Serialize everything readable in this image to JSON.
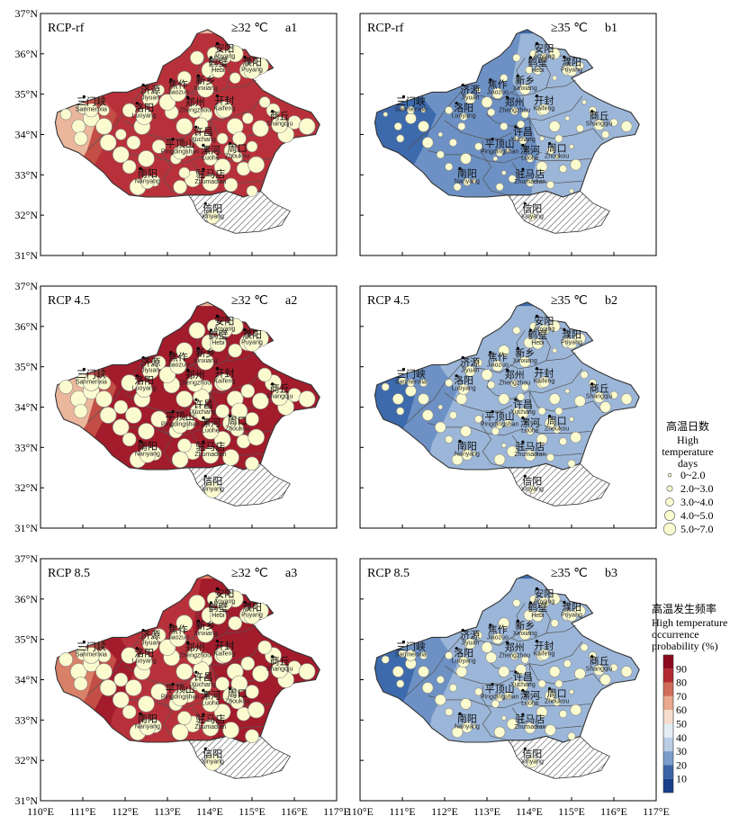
{
  "panels": [
    {
      "id": "a1",
      "scenario": "RCP-rf",
      "threshold": "≥32 ℃",
      "label": "a1",
      "col": 0,
      "row": 0,
      "base": "red",
      "fill": [
        0.2,
        0.52,
        0.85,
        0.8,
        0.82,
        0.88
      ],
      "dots": [
        4,
        4,
        5,
        5,
        5,
        5,
        4,
        5,
        4,
        5,
        5,
        5,
        4,
        4,
        3,
        4,
        5,
        4
      ]
    },
    {
      "id": "b1",
      "scenario": "RCP-rf",
      "threshold": "≥35 ℃",
      "label": "b1",
      "col": 1,
      "row": 0,
      "base": "blue",
      "fill": [
        0.1,
        0.25,
        0.4,
        0.42,
        0.45,
        0.52
      ],
      "dots": [
        2,
        2,
        3,
        3,
        3,
        3,
        2,
        2,
        2,
        3,
        3,
        2,
        2,
        2,
        1,
        2,
        2,
        2
      ]
    },
    {
      "id": "a2",
      "scenario": "RCP 4.5",
      "threshold": "≥32 ℃",
      "label": "a2",
      "col": 0,
      "row": 1,
      "base": "red",
      "fill": [
        0.25,
        0.58,
        0.92,
        0.93,
        0.95,
        0.97
      ],
      "dots": [
        5,
        5,
        5,
        5,
        5,
        5,
        5,
        5,
        5,
        5,
        5,
        5,
        5,
        5,
        4,
        5,
        5,
        5
      ]
    },
    {
      "id": "b2",
      "scenario": "RCP 4.5",
      "threshold": "≥35 ℃",
      "label": "b2",
      "col": 1,
      "row": 1,
      "base": "blue",
      "fill": [
        0.18,
        0.35,
        0.45,
        0.5,
        0.52,
        0.58
      ],
      "dots": [
        3,
        3,
        3,
        3,
        3,
        3,
        2,
        3,
        2,
        3,
        3,
        3,
        2,
        2,
        2,
        3,
        3,
        2
      ]
    },
    {
      "id": "a3",
      "scenario": "RCP 8.5",
      "threshold": "≥32 ℃",
      "label": "a3",
      "col": 0,
      "row": 2,
      "base": "red",
      "fill": [
        0.3,
        0.62,
        0.9,
        0.86,
        0.88,
        0.92
      ],
      "dots": [
        5,
        5,
        5,
        5,
        5,
        5,
        5,
        5,
        5,
        5,
        5,
        5,
        5,
        5,
        4,
        5,
        5,
        5
      ]
    },
    {
      "id": "b3",
      "scenario": "RCP 8.5",
      "threshold": "≥35 ℃",
      "label": "b3",
      "col": 1,
      "row": 2,
      "base": "blue",
      "fill": [
        0.15,
        0.32,
        0.45,
        0.5,
        0.52,
        0.56
      ],
      "dots": [
        3,
        3,
        3,
        3,
        3,
        3,
        3,
        3,
        2,
        3,
        3,
        3,
        2,
        2,
        2,
        3,
        3,
        3
      ]
    }
  ],
  "x_ticks": [
    "110°E",
    "111°E",
    "112°E",
    "113°E",
    "114°E",
    "115°E",
    "116°E",
    "117°E"
  ],
  "y_ticks": [
    "37°N",
    "36°N",
    "35°N",
    "34°N",
    "33°N",
    "32°N",
    "31°N"
  ],
  "cities": [
    {
      "cn": "安阳",
      "en": "Anyang",
      "lon": 114.35,
      "lat": 36.1
    },
    {
      "cn": "鹤壁",
      "en": "Hebi",
      "lon": 114.2,
      "lat": 35.75
    },
    {
      "cn": "濮阳",
      "en": "Puyang",
      "lon": 115.0,
      "lat": 35.76
    },
    {
      "cn": "新乡",
      "en": "Xinxiang",
      "lon": 113.9,
      "lat": 35.3
    },
    {
      "cn": "焦作",
      "en": "Jiaozuo",
      "lon": 113.25,
      "lat": 35.2
    },
    {
      "cn": "济源",
      "en": "Jiyuan",
      "lon": 112.6,
      "lat": 35.07
    },
    {
      "cn": "三门峡",
      "en": "Sanmenxia",
      "lon": 111.2,
      "lat": 34.78
    },
    {
      "cn": "洛阳",
      "en": "Luoyang",
      "lon": 112.45,
      "lat": 34.62
    },
    {
      "cn": "郑州",
      "en": "Zhengzhou",
      "lon": 113.65,
      "lat": 34.76
    },
    {
      "cn": "开封",
      "en": "Kaifeng",
      "lon": 114.35,
      "lat": 34.8
    },
    {
      "cn": "商丘",
      "en": "Shangqiu",
      "lon": 115.65,
      "lat": 34.42
    },
    {
      "cn": "许昌",
      "en": "Xuchang",
      "lon": 113.85,
      "lat": 34.03
    },
    {
      "cn": "平顶山",
      "en": "Pingdingshan",
      "lon": 113.3,
      "lat": 33.73
    },
    {
      "cn": "漯河",
      "en": "Luohe",
      "lon": 114.02,
      "lat": 33.58
    },
    {
      "cn": "周口",
      "en": "Zhoukou",
      "lon": 114.65,
      "lat": 33.62
    },
    {
      "cn": "南阳",
      "en": "Nanyang",
      "lon": 112.53,
      "lat": 33.0
    },
    {
      "cn": "驻马店",
      "en": "Zhumadian",
      "lon": 114.02,
      "lat": 32.98
    },
    {
      "cn": "信阳",
      "en": "Xinyang",
      "lon": 114.07,
      "lat": 32.13
    }
  ],
  "legend_days": {
    "title_cn": "高温日数",
    "title_en1": "High",
    "title_en2": "temperature",
    "title_en3": "days",
    "items": [
      "0~2.0",
      "2.0~3.0",
      "3.0~4.0",
      "4.0~5.0",
      "5.0~7.0"
    ]
  },
  "legend_prob": {
    "title_cn": "高温发生频率",
    "title_en1": "High temperature",
    "title_en2": "occurrence",
    "title_en3": "probability (%)",
    "ticks": [
      "90",
      "80",
      "70",
      "60",
      "50",
      "40",
      "30",
      "20",
      "10"
    ],
    "colors": [
      "#8b0a1e",
      "#b42a33",
      "#cf6d5a",
      "#e8a98d",
      "#f6dccb",
      "#e4ecf5",
      "#b9cde5",
      "#7a9ecb",
      "#3a64a6",
      "#173f8a"
    ]
  },
  "colors": {
    "red_scale": [
      "#f6dccb",
      "#eab69c",
      "#d98068",
      "#c34e45",
      "#b8313a",
      "#a21c2b"
    ],
    "blue_scale": [
      "#1f4f98",
      "#3d6aad",
      "#6d91c4",
      "#9bb6d8",
      "#c5d5e8",
      "#e3ebf4"
    ],
    "dot_fill": "#fbfbd0",
    "border": "#333333"
  }
}
